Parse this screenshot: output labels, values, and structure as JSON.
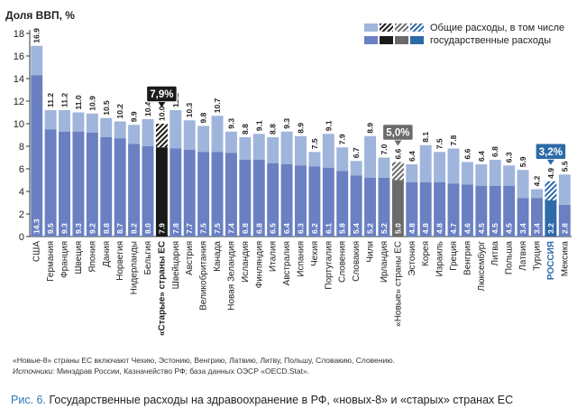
{
  "chart_data": {
    "type": "bar",
    "ylabel": "Доля ВВП, %",
    "ylim": [
      0,
      18
    ],
    "yticks": [
      0,
      2,
      4,
      6,
      8,
      10,
      12,
      14,
      16,
      18
    ],
    "grid": false,
    "legend_position": "top-right",
    "legend": {
      "total": "Общие расходы, в том числе",
      "public": "государственные расходы"
    },
    "categories": [
      "США",
      "Германия",
      "Франция",
      "Швеция",
      "Япония",
      "Дания",
      "Норвегия",
      "Нидерланды",
      "Бельгия",
      "«Старые» страны ЕС",
      "Швейцария",
      "Австрия",
      "Великобритания",
      "Канада",
      "Новая Зеландия",
      "Исландия",
      "Финляндия",
      "Италия",
      "Австралия",
      "Испания",
      "Чехия",
      "Португалия",
      "Словения",
      "Словакия",
      "Чили",
      "Ирландия",
      "«Новые» страны ЕС",
      "Эстония",
      "Корея",
      "Израиль",
      "Греция",
      "Венгрия",
      "Люксембург",
      "Литва",
      "Польша",
      "Латвия",
      "Турция",
      "РОССИЯ",
      "Мексика"
    ],
    "series": [
      {
        "name": "Общие расходы, в том числе",
        "values": [
          16.9,
          11.2,
          11.2,
          11.0,
          10.9,
          10.5,
          10.2,
          9.9,
          10.4,
          10.0,
          11.2,
          10.3,
          9.8,
          10.7,
          9.3,
          8.8,
          9.1,
          8.8,
          9.3,
          8.9,
          7.5,
          9.1,
          7.9,
          6.7,
          8.9,
          7.0,
          6.6,
          6.4,
          8.1,
          7.5,
          7.8,
          6.6,
          6.4,
          6.8,
          6.3,
          5.9,
          4.2,
          4.9,
          5.5
        ]
      },
      {
        "name": "государственные расходы",
        "values": [
          14.3,
          9.5,
          9.3,
          9.3,
          9.2,
          8.8,
          8.7,
          8.2,
          8.0,
          7.9,
          7.8,
          7.7,
          7.5,
          7.5,
          7.4,
          6.8,
          6.8,
          6.5,
          6.4,
          6.3,
          6.2,
          6.1,
          5.8,
          5.4,
          5.2,
          5.2,
          5.0,
          4.8,
          4.8,
          4.8,
          4.7,
          4.6,
          4.5,
          4.5,
          4.5,
          3.4,
          3.4,
          3.2,
          2.8
        ]
      }
    ],
    "annotations": [
      {
        "category": "«Старые» страны ЕС",
        "text": "7,9%"
      },
      {
        "category": "«Новые» страны ЕС",
        "text": "5,0%"
      },
      {
        "category": "РОССИЯ",
        "text": "3,2%"
      }
    ],
    "highlight": {
      "«Старые» страны ЕС": {
        "public": "#1a1a1a",
        "total": "#1a1a1a",
        "pattern": true,
        "bold_label": true
      },
      "«Новые» страны ЕС": {
        "public": "#6b6b6b",
        "total": "#6b6b6b",
        "pattern": true,
        "bold_label": false
      },
      "РОССИЯ": {
        "public": "#2d6aa8",
        "total": "#2d6aa8",
        "pattern": true,
        "bold_label": true,
        "label_color": "#2d6aa8"
      }
    },
    "colors": {
      "total": "#9fb5dc",
      "public": "#6a80c2",
      "total_value_label": "#222222",
      "public_value_label": "#ffffff",
      "callout_bg": "#1a1a1a",
      "callout_new_bg": "#6b6b6b",
      "callout_russia_bg": "#2d6aa8"
    }
  },
  "notes": {
    "composition": "«Новые-8» страны ЕС включают Чехию, Эстонию, Венгрию, Латвию, Литву, Польшу, Словакию, Словению.",
    "sources_label": "Источники:",
    "sources": "Минздрав России, Казначейство РФ; база данных ОЭСР «OECD.Stat»."
  },
  "caption": {
    "figure_label": "Рис. 6.",
    "text": "Государственные расходы на здравоохранение в РФ, «новых-8» и «старых» странах ЕС"
  }
}
